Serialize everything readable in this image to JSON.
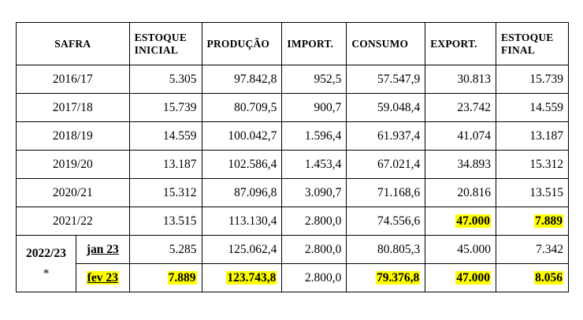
{
  "headers": {
    "safra": "SAFRA",
    "estoque_inicial": [
      "ESTOQUE",
      "INICIAL"
    ],
    "producao": "PRODUÇÃO",
    "import": "IMPORT.",
    "consumo": "CONSUMO",
    "export": "EXPORT.",
    "estoque_final": [
      "ESTOQUE",
      "FINAL"
    ]
  },
  "rows": [
    {
      "safra": "2016/17",
      "estoque_inicial": "5.305",
      "producao": "97.842,8",
      "import": "952,5",
      "consumo": "57.547,9",
      "export": "30.813",
      "estoque_final": "15.739"
    },
    {
      "safra": "2017/18",
      "estoque_inicial": "15.739",
      "producao": "80.709,5",
      "import": "900,7",
      "consumo": "59.048,4",
      "export": "23.742",
      "estoque_final": "14.559"
    },
    {
      "safra": "2018/19",
      "estoque_inicial": "14.559",
      "producao": "100.042,7",
      "import": "1.596,4",
      "consumo": "61.937,4",
      "export": "41.074",
      "estoque_final": "13.187"
    },
    {
      "safra": "2019/20",
      "estoque_inicial": "13.187",
      "producao": "102.586,4",
      "import": "1.453,4",
      "consumo": "67.021,4",
      "export": "34.893",
      "estoque_final": "15.312"
    },
    {
      "safra": "2020/21",
      "estoque_inicial": "15.312",
      "producao": "87.096,8",
      "import": "3.090,7",
      "consumo": "71.168,6",
      "export": "20.816",
      "estoque_final": "13.515"
    },
    {
      "safra": "2021/22",
      "estoque_inicial": "13.515",
      "producao": "113.130,4",
      "import": "2.800,0",
      "consumo": "74.556,6",
      "export": "47.000",
      "estoque_final": "7.889"
    }
  ],
  "group": {
    "label": "2022/23",
    "note": "*",
    "rows": [
      {
        "sub": "jan 23",
        "estoque_inicial": "5.285",
        "producao": "125.062,4",
        "import": "2.800,0",
        "consumo": "80.805,3",
        "export": "45.000",
        "estoque_final": "7.342"
      },
      {
        "sub": "fev 23",
        "estoque_inicial": "7.889",
        "producao": "123.743,8",
        "import": "2.800,0",
        "consumo": "79.376,8",
        "export": "47.000",
        "estoque_final": "8.056"
      }
    ]
  },
  "highlight_color": "#ffff00"
}
